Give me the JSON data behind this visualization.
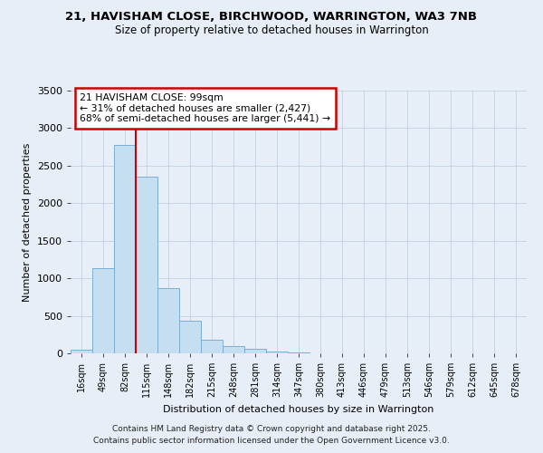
{
  "title_line1": "21, HAVISHAM CLOSE, BIRCHWOOD, WARRINGTON, WA3 7NB",
  "title_line2": "Size of property relative to detached houses in Warrington",
  "xlabel": "Distribution of detached houses by size in Warrington",
  "ylabel": "Number of detached properties",
  "bar_labels": [
    "16sqm",
    "49sqm",
    "82sqm",
    "115sqm",
    "148sqm",
    "182sqm",
    "215sqm",
    "248sqm",
    "281sqm",
    "314sqm",
    "347sqm",
    "380sqm",
    "413sqm",
    "446sqm",
    "479sqm",
    "513sqm",
    "546sqm",
    "579sqm",
    "612sqm",
    "645sqm",
    "678sqm"
  ],
  "bar_values": [
    50,
    1130,
    2770,
    2350,
    875,
    435,
    185,
    100,
    55,
    25,
    10,
    5,
    2,
    1,
    1,
    0,
    0,
    0,
    0,
    0,
    0
  ],
  "bar_color": "#c5dff0",
  "bar_edge_color": "#7bafd4",
  "vline_x_bin": 2,
  "annotation_title": "21 HAVISHAM CLOSE: 99sqm",
  "annotation_line2": "← 31% of detached houses are smaller (2,427)",
  "annotation_line3": "68% of semi-detached houses are larger (5,441) →",
  "vline_color": "#cc0000",
  "ylim": [
    0,
    3500
  ],
  "yticks": [
    0,
    500,
    1000,
    1500,
    2000,
    2500,
    3000,
    3500
  ],
  "footnote1": "Contains HM Land Registry data © Crown copyright and database right 2025.",
  "footnote2": "Contains public sector information licensed under the Open Government Licence v3.0.",
  "background_color": "#e8eef8",
  "grid_color": "#c0cfe0"
}
